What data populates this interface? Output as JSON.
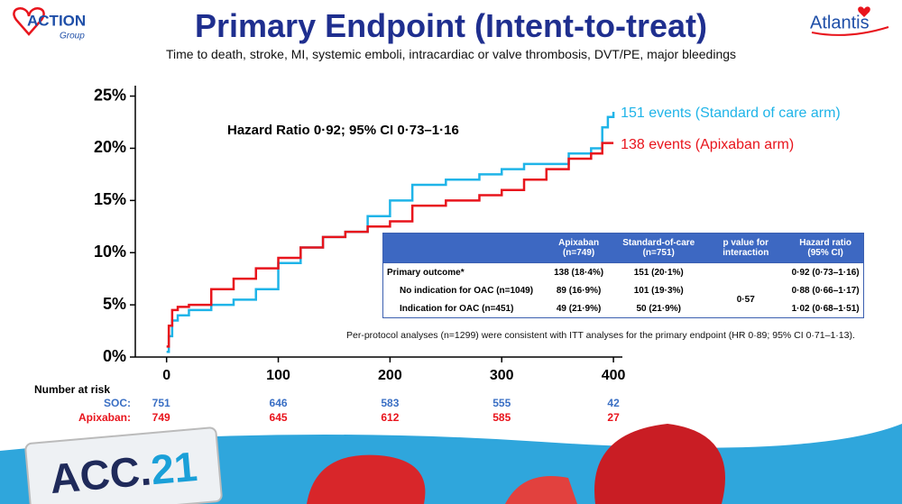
{
  "header": {
    "title": "Primary Endpoint (Intent-to-treat)",
    "subtitle": "Time to death, stroke, MI, systemic emboli, intracardiac or valve thrombosis, DVT/PE, major bleedings",
    "logo_left": "ACTION",
    "logo_left_sub": "Group",
    "logo_right": "Atlantis",
    "badge": "ACC.",
    "badge_num": "21"
  },
  "chart_data": {
    "type": "line",
    "annotation": "Hazard Ratio 0·92; 95% CI  0·73–1·16",
    "x": [
      0,
      2,
      5,
      10,
      20,
      40,
      60,
      80,
      100,
      120,
      140,
      160,
      180,
      200,
      220,
      250,
      280,
      300,
      320,
      340,
      360,
      380,
      390,
      395,
      400
    ],
    "series": [
      {
        "name": "151 events (Standard of care arm)",
        "color": "#1fb4e8",
        "values": [
          0.5,
          2,
          3.5,
          4,
          4.5,
          5,
          5.5,
          6.5,
          9,
          10.5,
          11.5,
          12,
          13.5,
          15,
          16.5,
          17,
          17.5,
          18,
          18.5,
          18.5,
          19.5,
          20,
          22,
          23,
          23.5
        ]
      },
      {
        "name": "138 events (Apixaban arm)",
        "color": "#e8141c",
        "values": [
          1,
          3,
          4.5,
          4.8,
          5,
          6.5,
          7.5,
          8.5,
          9.5,
          10.5,
          11.5,
          12,
          12.5,
          13,
          14.5,
          15,
          15.5,
          16,
          17,
          18,
          19,
          19.5,
          20.5,
          20.5,
          20.5
        ]
      }
    ],
    "step": true,
    "xlim": [
      -28,
      408
    ],
    "xticks": [
      0,
      100,
      200,
      300,
      400
    ],
    "ylim": [
      0,
      26
    ],
    "yticks": [
      {
        "value": 0,
        "label": "0%"
      },
      {
        "value": 5,
        "label": "5%"
      },
      {
        "value": 10,
        "label": "10%"
      },
      {
        "value": 15,
        "label": "15%"
      },
      {
        "value": 20,
        "label": "20%"
      },
      {
        "value": 25,
        "label": "25%"
      }
    ]
  },
  "risk": {
    "label": "Number at risk",
    "rows": [
      {
        "name": "SOC:",
        "color": "#3a6fc4",
        "values": [
          751,
          646,
          583,
          555,
          42
        ]
      },
      {
        "name": "Apixaban:",
        "color": "#e8141c",
        "values": [
          749,
          645,
          612,
          585,
          27
        ]
      }
    ]
  },
  "table": {
    "columns": [
      "Apixaban (n=749)",
      "Standard-of-care (n=751)",
      "p value for interaction",
      "Hazard ratio (95% CI)"
    ],
    "rows": [
      [
        "Primary outcome*",
        "138 (18·4%)",
        "151 (20·1%)",
        "0·92 (0·73–1·16)"
      ],
      [
        "No indication for OAC (n=1049)",
        "89 (16·9%)",
        "101 (19·3%)",
        "0·88 (0·66–1·17)"
      ],
      [
        "Indication for OAC (n=451)",
        "49 (21·9%)",
        "50 (21·9%)",
        "1·02 (0·68–1·51)"
      ]
    ],
    "p_value": "0·57"
  },
  "footnote": "Per-protocol analyses (n=1299) were consistent with ITT analyses for the primary endpoint (HR 0·89; 95% CI 0·71–1·13)."
}
